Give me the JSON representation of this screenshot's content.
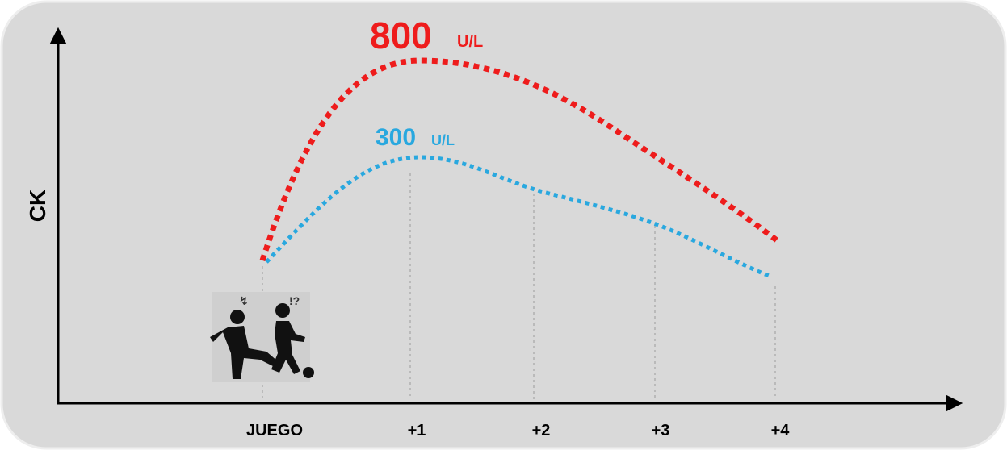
{
  "axis_label": "CK",
  "annotations": [
    {
      "value": "800",
      "unit": "U/L"
    },
    {
      "value": "300",
      "unit": "U/L"
    }
  ],
  "x_labels": [
    "JUEGO",
    "+1",
    "+2",
    "+3",
    "+4"
  ]
}
